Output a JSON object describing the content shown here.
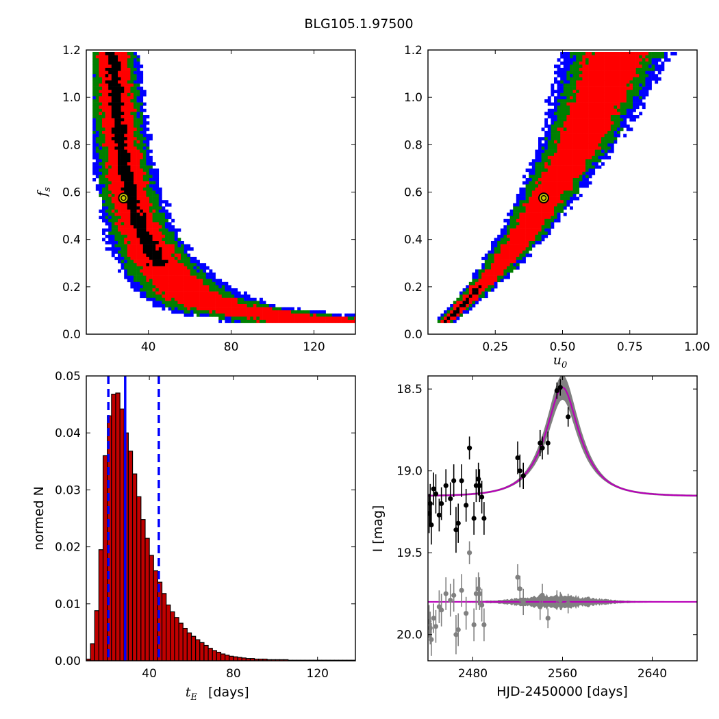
{
  "title": "BLG105.1.97500",
  "chart_data": [
    {
      "id": "tE_fs",
      "type": "heatmap",
      "xlabel": "",
      "ylabel": "f_s",
      "xlim": [
        10,
        140
      ],
      "ylim": [
        0,
        1.2
      ],
      "xticks": [
        "40",
        "80",
        "120"
      ],
      "yticks": [
        "0.0",
        "0.2",
        "0.4",
        "0.6",
        "0.8",
        "1.0",
        "1.2"
      ],
      "levels": [
        "1σ (black)",
        "2σ (red)",
        "3σ (green)",
        "4σ (blue)"
      ],
      "ridge": {
        "x": [
          22,
          24,
          27,
          30,
          34,
          40,
          48,
          60,
          75,
          95,
          120
        ],
        "y": [
          1.2,
          0.95,
          0.75,
          0.6,
          0.48,
          0.36,
          0.26,
          0.17,
          0.12,
          0.09,
          0.07
        ]
      },
      "best_fit": {
        "x": 28,
        "y": 0.575
      }
    },
    {
      "id": "u0_fs",
      "type": "heatmap",
      "xlabel": "u_0",
      "ylabel": "",
      "xlim": [
        0,
        1.0
      ],
      "ylim": [
        0,
        1.2
      ],
      "xticks": [
        "0.25",
        "0.50",
        "0.75",
        "1.00"
      ],
      "yticks": [
        "0.0",
        "0.2",
        "0.4",
        "0.6",
        "0.8",
        "1.0",
        "1.2"
      ],
      "ridge": {
        "x": [
          0.06,
          0.15,
          0.25,
          0.35,
          0.43,
          0.5,
          0.57,
          0.62,
          0.66,
          0.7
        ],
        "y": [
          0.06,
          0.16,
          0.28,
          0.43,
          0.575,
          0.7,
          0.85,
          0.98,
          1.1,
          1.2
        ]
      },
      "best_fit": {
        "x": 0.43,
        "y": 0.575
      }
    },
    {
      "id": "tE_hist",
      "type": "bar",
      "xlabel": "t_E [days]",
      "ylabel": "normed N",
      "xlim": [
        10,
        138
      ],
      "ylim": [
        0,
        0.05
      ],
      "xticks": [
        "40",
        "80",
        "120"
      ],
      "yticks": [
        "0.00",
        "0.01",
        "0.02",
        "0.03",
        "0.04",
        "0.05"
      ],
      "bin_start": 10,
      "bin_width": 2,
      "values": [
        0.0003,
        0.003,
        0.0088,
        0.0195,
        0.036,
        0.043,
        0.0468,
        0.047,
        0.0442,
        0.04,
        0.0368,
        0.0328,
        0.0288,
        0.0248,
        0.0215,
        0.0185,
        0.0158,
        0.0138,
        0.0118,
        0.0098,
        0.0086,
        0.0076,
        0.0066,
        0.0057,
        0.0049,
        0.0043,
        0.0037,
        0.0032,
        0.0027,
        0.0022,
        0.0018,
        0.0015,
        0.0012,
        0.001,
        0.0008,
        0.0007,
        0.0006,
        0.0005,
        0.0004,
        0.0004,
        0.0003,
        0.0003,
        0.0003,
        0.0002,
        0.0002,
        0.0002,
        0.0002,
        0.0002,
        0.0001,
        0.0001,
        0.0001,
        0.0001,
        0.0001,
        0.0001,
        0.0001,
        0.0001,
        0.0001,
        0.0001,
        0.0001,
        0.0001,
        0.0001,
        0.0001,
        0.0001,
        0.0001
      ],
      "median": 28.5,
      "lower": 20.5,
      "upper": 44.5
    },
    {
      "id": "lightcurve",
      "type": "scatter",
      "xlabel": "HJD-2450000 [days]",
      "ylabel": "I [mag]",
      "xlim": [
        2440,
        2680
      ],
      "ylim": [
        20.16,
        18.42
      ],
      "xticks": [
        "2480",
        "2560",
        "2640"
      ],
      "yticks": [
        "18.5",
        "19.0",
        "19.5",
        "20.0"
      ],
      "model": {
        "t0": 2560,
        "tE": 28,
        "u0": 0.43,
        "base": 19.155,
        "amp": 0.665
      },
      "data": [
        {
          "x": 2441,
          "y": 19.26,
          "e": 0.12
        },
        {
          "x": 2442,
          "y": 19.2,
          "e": 0.12
        },
        {
          "x": 2443,
          "y": 19.33,
          "e": 0.12
        },
        {
          "x": 2445,
          "y": 19.11,
          "e": 0.1
        },
        {
          "x": 2447,
          "y": 19.14,
          "e": 0.12
        },
        {
          "x": 2450,
          "y": 19.27,
          "e": 0.1
        },
        {
          "x": 2452,
          "y": 19.2,
          "e": 0.1
        },
        {
          "x": 2456,
          "y": 19.09,
          "e": 0.1
        },
        {
          "x": 2460,
          "y": 19.17,
          "e": 0.1
        },
        {
          "x": 2463,
          "y": 19.06,
          "e": 0.1
        },
        {
          "x": 2465,
          "y": 19.36,
          "e": 0.14
        },
        {
          "x": 2467,
          "y": 19.32,
          "e": 0.12
        },
        {
          "x": 2470,
          "y": 19.06,
          "e": 0.1
        },
        {
          "x": 2474,
          "y": 19.21,
          "e": 0.1
        },
        {
          "x": 2477,
          "y": 18.86,
          "e": 0.07
        },
        {
          "x": 2481,
          "y": 19.29,
          "e": 0.1
        },
        {
          "x": 2483,
          "y": 19.09,
          "e": 0.1
        },
        {
          "x": 2485,
          "y": 19.05,
          "e": 0.1
        },
        {
          "x": 2486,
          "y": 19.09,
          "e": 0.1
        },
        {
          "x": 2488,
          "y": 19.16,
          "e": 0.1
        },
        {
          "x": 2490,
          "y": 19.29,
          "e": 0.1
        },
        {
          "x": 2520,
          "y": 18.92,
          "e": 0.1
        },
        {
          "x": 2522,
          "y": 19.0,
          "e": 0.1
        },
        {
          "x": 2525,
          "y": 19.03,
          "e": 0.08
        },
        {
          "x": 2540,
          "y": 18.83,
          "e": 0.08
        },
        {
          "x": 2542,
          "y": 18.86,
          "e": 0.07
        },
        {
          "x": 2547,
          "y": 18.83,
          "e": 0.07
        },
        {
          "x": 2555,
          "y": 18.51,
          "e": 0.05
        },
        {
          "x": 2558,
          "y": 18.49,
          "e": 0.05
        },
        {
          "x": 2565,
          "y": 18.67,
          "e": 0.06
        }
      ],
      "residuals": [
        {
          "x": 2441,
          "y": 19.92,
          "e": 0.1
        },
        {
          "x": 2442,
          "y": 19.96,
          "e": 0.1
        },
        {
          "x": 2443,
          "y": 20.03,
          "e": 0.1
        },
        {
          "x": 2445,
          "y": 19.9,
          "e": 0.09
        },
        {
          "x": 2447,
          "y": 19.95,
          "e": 0.1
        },
        {
          "x": 2450,
          "y": 19.83,
          "e": 0.1
        },
        {
          "x": 2452,
          "y": 19.85,
          "e": 0.1
        },
        {
          "x": 2456,
          "y": 19.75,
          "e": 0.1
        },
        {
          "x": 2460,
          "y": 19.79,
          "e": 0.1
        },
        {
          "x": 2463,
          "y": 19.76,
          "e": 0.1
        },
        {
          "x": 2465,
          "y": 20.0,
          "e": 0.12
        },
        {
          "x": 2467,
          "y": 19.97,
          "e": 0.1
        },
        {
          "x": 2470,
          "y": 19.73,
          "e": 0.1
        },
        {
          "x": 2474,
          "y": 19.87,
          "e": 0.1
        },
        {
          "x": 2477,
          "y": 19.5,
          "e": 0.07
        },
        {
          "x": 2481,
          "y": 19.94,
          "e": 0.1
        },
        {
          "x": 2483,
          "y": 19.75,
          "e": 0.1
        },
        {
          "x": 2485,
          "y": 19.72,
          "e": 0.1
        },
        {
          "x": 2486,
          "y": 19.75,
          "e": 0.1
        },
        {
          "x": 2488,
          "y": 19.82,
          "e": 0.1
        },
        {
          "x": 2490,
          "y": 19.94,
          "e": 0.1
        },
        {
          "x": 2520,
          "y": 19.65,
          "e": 0.08
        },
        {
          "x": 2522,
          "y": 19.72,
          "e": 0.08
        },
        {
          "x": 2525,
          "y": 19.8,
          "e": 0.08
        },
        {
          "x": 2540,
          "y": 19.83,
          "e": 0.08
        },
        {
          "x": 2542,
          "y": 19.76,
          "e": 0.07
        },
        {
          "x": 2547,
          "y": 19.9,
          "e": 0.06
        },
        {
          "x": 2555,
          "y": 19.78,
          "e": 0.05
        },
        {
          "x": 2558,
          "y": 19.79,
          "e": 0.05
        },
        {
          "x": 2565,
          "y": 19.81,
          "e": 0.06
        }
      ],
      "residual_baseline": 19.8
    }
  ],
  "colors": {
    "sigma1": "#000000",
    "sigma2": "#ff0000",
    "sigma3": "#007f00",
    "sigma4": "#0000ff",
    "bar": "#c00000",
    "vline": "#0000ff",
    "model": "#b800b8",
    "band": "#808080",
    "resid": "#808080",
    "marker_face": "#c8c800"
  }
}
